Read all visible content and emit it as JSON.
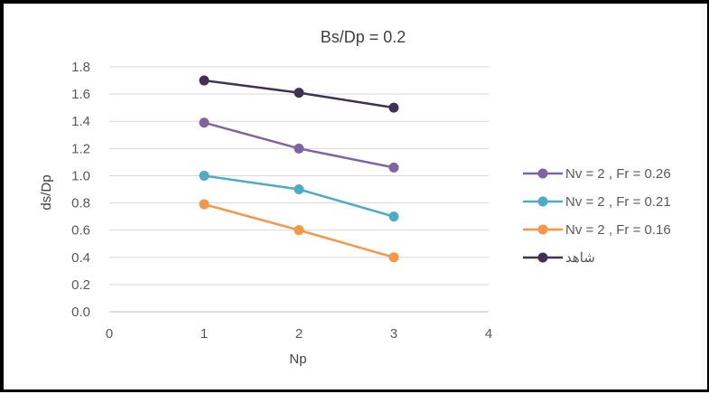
{
  "chart_data": {
    "type": "line",
    "title": "Bs/Dp = 0.2",
    "xlabel": "Np",
    "ylabel": "ds/Dp",
    "xlim": [
      0,
      4
    ],
    "ylim": [
      0,
      1.8
    ],
    "x_ticks": [
      "0",
      "1",
      "2",
      "3",
      "4"
    ],
    "y_ticks": [
      "0.0",
      "0.2",
      "0.4",
      "0.6",
      "0.8",
      "1.0",
      "1.2",
      "1.4",
      "1.6",
      "1.8"
    ],
    "grid": "horizontal",
    "legend_position": "right",
    "series": [
      {
        "name": "Nv = 2 , Fr = 0.26",
        "color": "#8064a2",
        "x": [
          1,
          2,
          3
        ],
        "y": [
          1.39,
          1.2,
          1.06
        ]
      },
      {
        "name": "Nv = 2 , Fr = 0.21",
        "color": "#4bacc6",
        "x": [
          1,
          2,
          3
        ],
        "y": [
          1.0,
          0.9,
          0.7
        ]
      },
      {
        "name": "Nv = 2 , Fr = 0.16",
        "color": "#f79646",
        "x": [
          1,
          2,
          3
        ],
        "y": [
          0.79,
          0.6,
          0.4
        ]
      },
      {
        "name": "شاهد",
        "color": "#403152",
        "x": [
          1,
          2,
          3
        ],
        "y": [
          1.7,
          1.61,
          1.5
        ]
      }
    ]
  }
}
